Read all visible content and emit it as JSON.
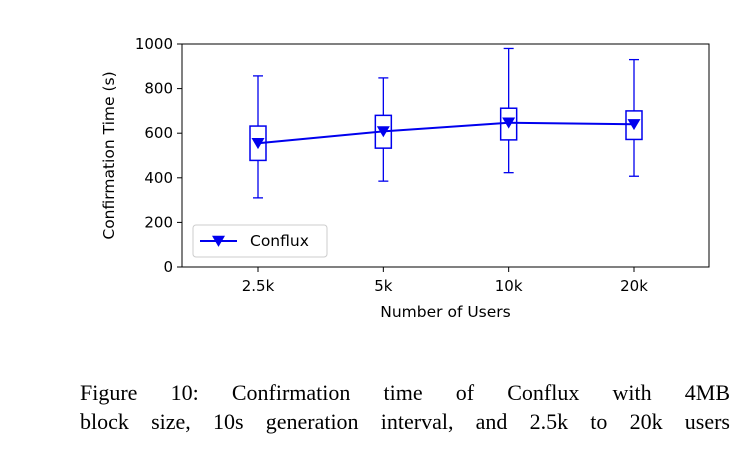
{
  "chart_data": {
    "type": "line",
    "xlabel": "Number of Users",
    "ylabel": "Confirmation Time (s)",
    "categories": [
      "2.5k",
      "5k",
      "10k",
      "20k"
    ],
    "ylim": [
      0,
      1000
    ],
    "yticks": [
      0,
      200,
      400,
      600,
      800,
      1000
    ],
    "grid": false,
    "legend_position": "lower-left",
    "series": [
      {
        "name": "Conflux",
        "color": "#0000ee",
        "marker": "triangle-down",
        "values": [
          555,
          608,
          647,
          640
        ],
        "box": [
          {
            "whisker_low": 310,
            "q1": 478,
            "q3": 632,
            "whisker_high": 857
          },
          {
            "whisker_low": 385,
            "q1": 533,
            "q3": 680,
            "whisker_high": 848
          },
          {
            "whisker_low": 423,
            "q1": 570,
            "q3": 712,
            "whisker_high": 980
          },
          {
            "whisker_low": 407,
            "q1": 572,
            "q3": 700,
            "whisker_high": 930
          }
        ]
      }
    ]
  },
  "caption": {
    "line1": "Figure 10:  Confirmation time of Conflux with 4MB",
    "line2": "block size, 10s generation interval, and 2.5k to 20k users"
  }
}
